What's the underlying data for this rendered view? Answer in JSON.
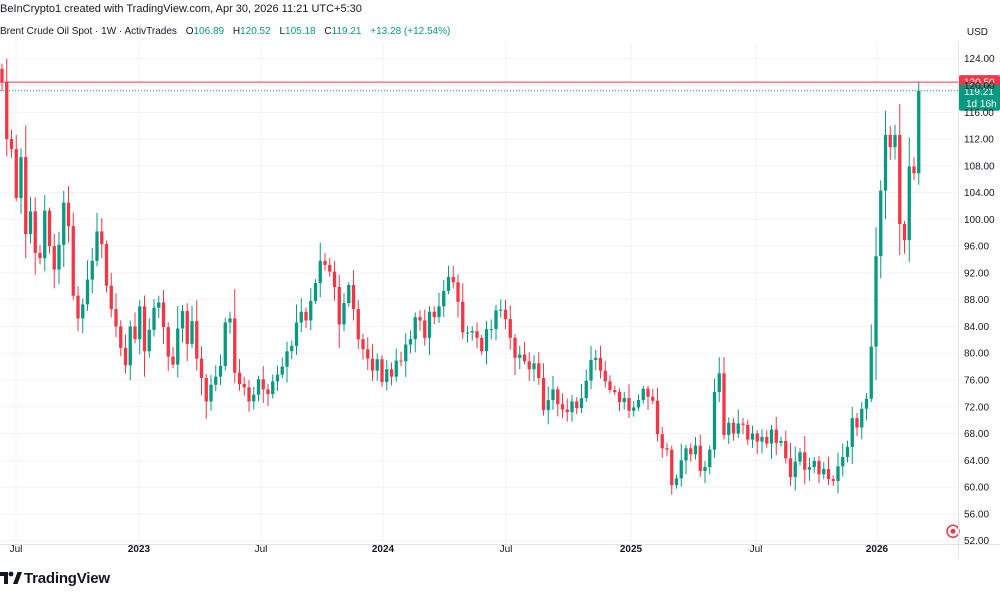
{
  "header": {
    "created_by": "BeInCrypto1 created with TradingView.com, Apr 30, 2026 11:21 UTC+5:30"
  },
  "legend": {
    "title": "Brent Crude Oil Spot · 1W · ActivTrades",
    "open_label": "O",
    "open": "106.89",
    "high_label": "H",
    "high": "120.52",
    "low_label": "L",
    "low": "105.18",
    "close_label": "C",
    "close": "119.21",
    "change": "+13.28 (+12.54%)"
  },
  "currency": "USD",
  "footer": {
    "brand": "TradingView"
  },
  "colors": {
    "up": "#089981",
    "down": "#f23645",
    "grid": "#f0f3fa",
    "axis_text": "#131722"
  },
  "chart_data": {
    "type": "candlestick",
    "title": "Brent Crude Oil Spot · 1W · ActivTrades",
    "x_ticks": [
      "Jul",
      "2023",
      "Jul",
      "2024",
      "Jul",
      "2025",
      "Jul",
      "2026"
    ],
    "y_ticks": [
      52,
      56,
      60,
      64,
      68,
      72,
      76,
      80,
      84,
      88,
      92,
      96,
      100,
      104,
      108,
      112,
      116,
      120,
      124
    ],
    "ylim": [
      51.5,
      126.5
    ],
    "price_labels": [
      {
        "value": 120.5,
        "text": "120.50",
        "kind": "high_line"
      },
      {
        "value": 119.21,
        "text": "119.21",
        "kind": "last",
        "sub": "1d 16h"
      }
    ],
    "close_series": [
      120.5,
      112.0,
      110.5,
      103.2,
      109.3,
      97.8,
      101.2,
      95.0,
      94.2,
      101.3,
      96.0,
      92.5,
      96.2,
      102.5,
      99.0,
      88.6,
      85.2,
      87.3,
      91.0,
      93.8,
      98.2,
      96.3,
      90.1,
      86.6,
      84.0,
      80.8,
      78.2,
      84.0,
      82.1,
      87.0,
      80.3,
      83.5,
      86.8,
      87.6,
      83.9,
      79.5,
      78.3,
      83.7,
      86.3,
      81.4,
      84.8,
      79.2,
      76.3,
      72.8,
      75.3,
      76.5,
      78.1,
      84.6,
      85.2,
      77.1,
      75.4,
      74.9,
      72.8,
      73.8,
      76.1,
      74.6,
      73.9,
      75.8,
      76.8,
      78.0,
      80.3,
      81.1,
      84.6,
      86.2,
      84.9,
      87.8,
      90.5,
      93.8,
      93.2,
      92.2,
      89.9,
      84.3,
      87.5,
      90.2,
      86.6,
      82.1,
      80.6,
      79.2,
      77.4,
      79.1,
      75.7,
      77.6,
      76.5,
      78.9,
      78.8,
      81.3,
      82.1,
      85.4,
      84.9,
      82.3,
      86.2,
      85.4,
      87.0,
      89.3,
      91.4,
      90.6,
      87.7,
      83.1,
      83.1,
      83.3,
      82.3,
      80.3,
      83.6,
      83.6,
      86.4,
      86.5,
      85.1,
      82.3,
      79.3,
      79.8,
      78.8,
      77.6,
      78.5,
      76.3,
      71.5,
      73.0,
      74.6,
      72.4,
      71.6,
      71.2,
      72.8,
      71.8,
      73.3,
      75.9,
      79.0,
      79.3,
      77.4,
      75.8,
      74.5,
      74.2,
      72.7,
      73.3,
      71.4,
      71.9,
      73.0,
      74.7,
      73.5,
      72.9,
      67.9,
      65.8,
      65.6,
      60.3,
      61.3,
      64.0,
      65.8,
      64.9,
      66.2,
      62.4,
      63.0,
      65.6,
      74.2,
      77.0,
      67.8,
      69.6,
      68.0,
      69.5,
      69.3,
      67.1,
      68.0,
      66.8,
      67.5,
      66.5,
      68.6,
      66.6,
      66.9,
      64.3,
      61.5,
      63.8,
      65.2,
      62.6,
      63.0,
      63.9,
      61.9,
      62.7,
      61.2,
      60.9,
      63.1,
      64.5,
      66.0,
      70.3,
      68.9,
      71.7,
      73.2,
      81.0,
      94.5,
      104.3,
      112.6,
      110.8,
      112.6,
      99.3,
      96.9,
      107.9,
      106.89,
      119.21
    ]
  }
}
